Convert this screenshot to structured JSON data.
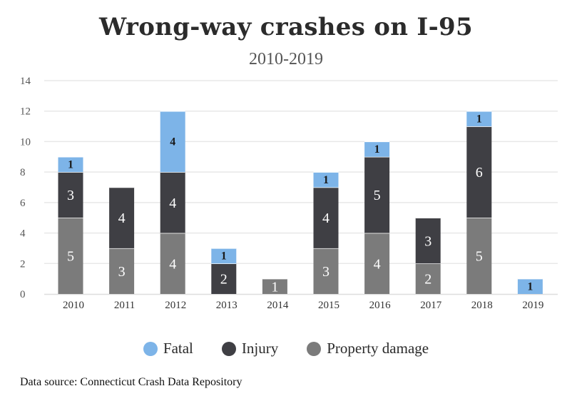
{
  "source": "Data source: Connecticut Crash Data Repository",
  "colors": {
    "fatal": "#7db4e8",
    "injury": "#3f3f44",
    "property": "#7b7b7b",
    "grid": "#e8e8e8",
    "axis_text": "#555555"
  },
  "chart_data": {
    "type": "bar",
    "stacked": true,
    "title": "Wrong-way crashes on I-95",
    "subtitle": "2010-2019",
    "xlabel": "",
    "ylabel": "",
    "categories": [
      "2010",
      "2011",
      "2012",
      "2013",
      "2014",
      "2015",
      "2016",
      "2017",
      "2018",
      "2019"
    ],
    "series": [
      {
        "name": "Property damage",
        "key": "property",
        "values": [
          5,
          3,
          4,
          0,
          1,
          3,
          4,
          2,
          5,
          0
        ]
      },
      {
        "name": "Injury",
        "key": "injury",
        "values": [
          3,
          4,
          4,
          2,
          0,
          4,
          5,
          3,
          6,
          0
        ]
      },
      {
        "name": "Fatal",
        "key": "fatal",
        "values": [
          1,
          0,
          4,
          1,
          0,
          1,
          1,
          0,
          1,
          1
        ]
      }
    ],
    "ylim": [
      0,
      14
    ],
    "yticks": [
      0,
      2,
      4,
      6,
      8,
      10,
      12,
      14
    ],
    "grid": true,
    "legend_position": "bottom",
    "legend_order": [
      "fatal",
      "injury",
      "property"
    ]
  }
}
